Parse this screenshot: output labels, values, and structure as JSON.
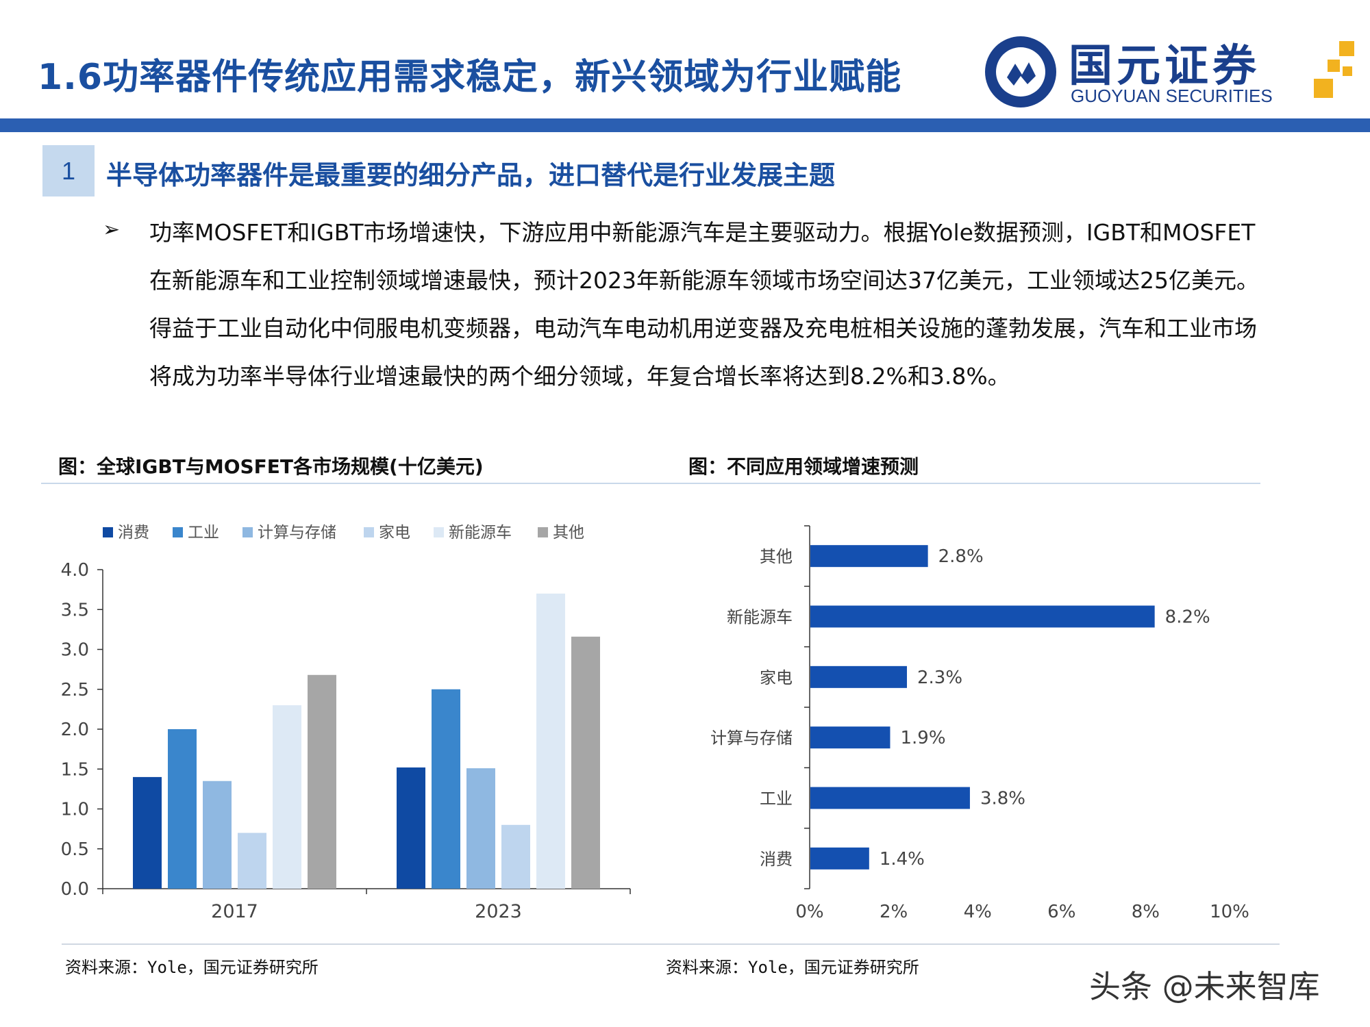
{
  "header": {
    "title": "1.6功率器件传统应用需求稳定，新兴领域为行业赋能",
    "logo_name": "国元证券",
    "logo_sub": "GUOYUAN SECURITIES"
  },
  "section": {
    "number": "1",
    "title": "半导体功率器件是最重要的细分产品，进口替代是行业发展主题"
  },
  "bullet": {
    "marker": "➢",
    "text": "功率MOSFET和IGBT市场增速快，下游应用中新能源汽车是主要驱动力。根据Yole数据预测，IGBT和MOSFET在新能源车和工业控制领域增速最快，预计2023年新能源车领域市场空间达37亿美元，工业领域达25亿美元。得益于工业自动化中伺服电机变频器，电动汽车电动机用逆变器及充电桩相关设施的蓬勃发展，汽车和工业市场将成为功率半导体行业增速最快的两个细分领域，年复合增长率将达到8.2%和3.8%。"
  },
  "figures": {
    "left_title": "图：全球IGBT与MOSFET各市场规模(十亿美元)",
    "right_title": "图：不同应用领域增速预测",
    "left_source": "资料来源：Yole，国元证券研究所",
    "right_source": "资料来源：Yole，国元证券研究所"
  },
  "watermark": "头条 @未来智库",
  "chart_data": [
    {
      "type": "bar",
      "categories": [
        "2017",
        "2023"
      ],
      "series": [
        {
          "name": "消费",
          "values": [
            1.4,
            1.52
          ],
          "color": "#0f4aa3"
        },
        {
          "name": "工业",
          "values": [
            2.0,
            2.5
          ],
          "color": "#3a86cc"
        },
        {
          "name": "计算与存储",
          "values": [
            1.35,
            1.51
          ],
          "color": "#8fb8e1"
        },
        {
          "name": "家电",
          "values": [
            0.7,
            0.8
          ],
          "color": "#bed5ee"
        },
        {
          "name": "新能源车",
          "values": [
            2.3,
            3.7
          ],
          "color": "#dde9f5"
        },
        {
          "name": "其他",
          "values": [
            2.68,
            3.16
          ],
          "color": "#a6a6a6"
        }
      ],
      "ylim": [
        0,
        4.0
      ],
      "yticks": [
        "0.0",
        "0.5",
        "1.0",
        "1.5",
        "2.0",
        "2.5",
        "3.0",
        "3.5",
        "4.0"
      ],
      "legend": "top"
    },
    {
      "type": "bar",
      "orientation": "horizontal",
      "categories": [
        "其他",
        "新能源车",
        "家电",
        "计算与存储",
        "工业",
        "消费"
      ],
      "values": [
        2.8,
        8.2,
        2.3,
        1.9,
        3.8,
        1.4
      ],
      "labels": [
        "2.8%",
        "8.2%",
        "2.3%",
        "1.9%",
        "3.8%",
        "1.4%"
      ],
      "xlim": [
        0,
        10
      ],
      "xticks": [
        "0%",
        "2%",
        "4%",
        "6%",
        "8%",
        "10%"
      ],
      "color": "#1450b0"
    }
  ]
}
